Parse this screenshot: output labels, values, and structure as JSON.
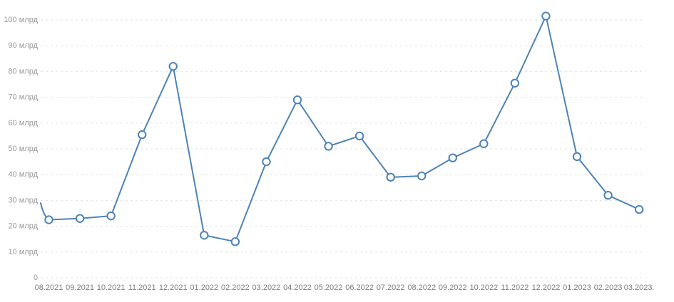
{
  "chart_data": {
    "type": "line",
    "title": "",
    "xlabel": "",
    "ylabel": "",
    "unit": "млрд",
    "x": [
      "08.2021",
      "09.2021",
      "10.2021",
      "11.2021",
      "12.2021",
      "01.2022",
      "02.2022",
      "03.2022",
      "04.2022",
      "05.2022",
      "06.2022",
      "07.2022",
      "08.2022",
      "09.2022",
      "10.2022",
      "11.2022",
      "12.2022",
      "01.2023",
      "02.2023",
      "03.2023."
    ],
    "values": [
      22.5,
      23,
      24,
      55.5,
      82,
      16.5,
      14,
      45,
      69,
      51,
      55,
      39,
      39.5,
      46.5,
      52,
      75.5,
      101.5,
      47,
      32,
      26.5
    ],
    "left_edge_entry_value": 29,
    "y_ticks": [
      0,
      10,
      20,
      30,
      40,
      50,
      60,
      70,
      80,
      90,
      100
    ],
    "y_tick_labels": [
      "0",
      "10 млрд",
      "20 млрд",
      "30 млрд",
      "40 млрд",
      "50 млрд",
      "60 млрд",
      "70 млрд",
      "80 млрд",
      "90 млрд",
      "100 млрд"
    ],
    "ylim": [
      0,
      105
    ],
    "grid": "horizontal-dashed",
    "legend": "none",
    "colors": {
      "line": "#4e83b6",
      "marker_fill": "#ffffff",
      "marker_stroke": "#4e83b6",
      "gridline": "#e2e2e2",
      "y_label_text": "#9a9a9a",
      "x_label_text": "#7d7d7d",
      "background": "#ffffff"
    }
  }
}
